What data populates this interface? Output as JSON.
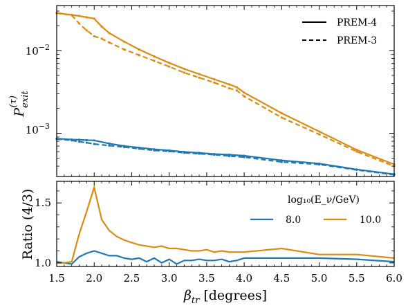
{
  "colors": {
    "series_8": "#1f77b4",
    "series_10": "#dd8a12",
    "axis": "#000000"
  },
  "chart_data": [
    {
      "type": "line",
      "panel": "top",
      "ylabel": "P_exit^(τ)",
      "yscale": "log",
      "ylim": [
        0.0003,
        0.035
      ],
      "xlim": [
        1.5,
        6.0
      ],
      "grid": false,
      "legend_position": "top-right",
      "legend": [
        {
          "label": "PREM-4",
          "style": "solid"
        },
        {
          "label": "PREM-3",
          "style": "dashed"
        }
      ],
      "y_ticks": [
        {
          "value": 0.01,
          "label": "10",
          "exp": "−2"
        },
        {
          "value": 0.001,
          "label": "10",
          "exp": "−3"
        }
      ],
      "series": [
        {
          "color": "series_10",
          "style": "solid",
          "x": [
            1.5,
            1.7,
            1.8,
            1.9,
            2.0,
            2.1,
            2.2,
            2.4,
            2.6,
            2.8,
            3.0,
            3.2,
            3.4,
            3.6,
            3.8,
            3.9,
            4.0,
            4.5,
            5.0,
            5.5,
            6.0
          ],
          "y": [
            0.0285,
            0.027,
            0.0262,
            0.0252,
            0.0243,
            0.0195,
            0.0163,
            0.0128,
            0.0103,
            0.0085,
            0.0071,
            0.006,
            0.0052,
            0.0045,
            0.0039,
            0.0036,
            0.0031,
            0.00175,
            0.00105,
            0.00063,
            0.00042
          ]
        },
        {
          "color": "series_10",
          "style": "dashed",
          "x": [
            1.5,
            1.7,
            1.8,
            1.9,
            2.0,
            2.1,
            2.2,
            2.4,
            2.6,
            2.8,
            3.0,
            3.2,
            3.4,
            3.6,
            3.8,
            3.9,
            4.0,
            4.5,
            5.0,
            5.5,
            6.0
          ],
          "y": [
            0.0283,
            0.0267,
            0.0212,
            0.0175,
            0.0149,
            0.0139,
            0.0125,
            0.0103,
            0.0088,
            0.0075,
            0.0064,
            0.0054,
            0.0047,
            0.0041,
            0.0035,
            0.0033,
            0.0028,
            0.00155,
            0.00097,
            0.0006,
            0.0004
          ]
        },
        {
          "color": "series_8",
          "style": "solid",
          "x": [
            1.5,
            1.7,
            1.8,
            1.9,
            2.0,
            2.2,
            2.4,
            2.6,
            2.8,
            3.0,
            3.2,
            3.4,
            3.6,
            3.8,
            4.0,
            4.5,
            5.0,
            5.5,
            6.0
          ],
          "y": [
            0.00086,
            0.00084,
            0.000835,
            0.000825,
            0.00082,
            0.00075,
            0.0007,
            0.00067,
            0.00064,
            0.00062,
            0.000595,
            0.00058,
            0.00056,
            0.00055,
            0.000535,
            0.00047,
            0.00043,
            0.000365,
            0.00032
          ]
        },
        {
          "color": "series_8",
          "style": "dashed",
          "x": [
            1.5,
            1.7,
            1.8,
            1.9,
            2.0,
            2.2,
            2.4,
            2.6,
            2.8,
            3.0,
            3.2,
            3.4,
            3.6,
            3.8,
            4.0,
            4.5,
            5.0,
            5.5,
            6.0
          ],
          "y": [
            0.00085,
            0.00082,
            0.00079,
            0.00077,
            0.00074,
            0.00071,
            0.00068,
            0.00065,
            0.00062,
            0.000605,
            0.00058,
            0.000565,
            0.00055,
            0.00053,
            0.000515,
            0.00045,
            0.00042,
            0.00036,
            0.000315
          ]
        }
      ]
    },
    {
      "type": "line",
      "panel": "bottom",
      "xlabel_main": "β",
      "xlabel_sub": "tr",
      "xlabel_unit": "[degrees]",
      "ylabel": "Ratio (4/3)",
      "ylim": [
        0.97,
        1.68
      ],
      "xlim": [
        1.5,
        6.0
      ],
      "grid": false,
      "legend_position": "upper right",
      "legend_title": "log₁₀(E_ν/GeV)",
      "legend": [
        {
          "label": "8.0",
          "color": "series_8"
        },
        {
          "label": "10.0",
          "color": "series_10"
        }
      ],
      "x_ticks": [
        "1.5",
        "2.0",
        "2.5",
        "3.0",
        "3.5",
        "4.0",
        "4.5",
        "5.0",
        "5.5",
        "6.0"
      ],
      "y_ticks": [
        "1.0",
        "1.5"
      ],
      "series": [
        {
          "name": "8.0",
          "color": "series_8",
          "x": [
            1.5,
            1.6,
            1.7,
            1.8,
            1.9,
            2.0,
            2.1,
            2.2,
            2.3,
            2.4,
            2.5,
            2.6,
            2.7,
            2.8,
            2.9,
            3.0,
            3.1,
            3.2,
            3.3,
            3.4,
            3.5,
            3.6,
            3.7,
            3.8,
            3.9,
            4.0,
            4.5,
            5.0,
            5.5,
            6.0
          ],
          "y": [
            1.01,
            1.0,
            0.99,
            1.05,
            1.08,
            1.1,
            1.08,
            1.06,
            1.06,
            1.04,
            1.03,
            1.04,
            1.01,
            1.04,
            1.0,
            1.03,
            0.99,
            1.02,
            1.02,
            1.03,
            1.02,
            1.02,
            1.03,
            1.01,
            1.02,
            1.04,
            1.04,
            1.04,
            1.03,
            1.01
          ]
        },
        {
          "name": "10.0",
          "color": "series_10",
          "x": [
            1.5,
            1.6,
            1.7,
            1.8,
            1.9,
            2.0,
            2.1,
            2.2,
            2.3,
            2.4,
            2.5,
            2.6,
            2.7,
            2.8,
            2.9,
            3.0,
            3.1,
            3.2,
            3.3,
            3.4,
            3.5,
            3.6,
            3.7,
            3.8,
            3.9,
            4.0,
            4.5,
            5.0,
            5.5,
            6.0
          ],
          "y": [
            1.0,
            1.0,
            1.01,
            1.24,
            1.43,
            1.63,
            1.36,
            1.27,
            1.22,
            1.19,
            1.17,
            1.15,
            1.14,
            1.13,
            1.14,
            1.12,
            1.12,
            1.11,
            1.1,
            1.1,
            1.11,
            1.09,
            1.1,
            1.09,
            1.09,
            1.09,
            1.12,
            1.07,
            1.07,
            1.04
          ]
        }
      ]
    }
  ]
}
